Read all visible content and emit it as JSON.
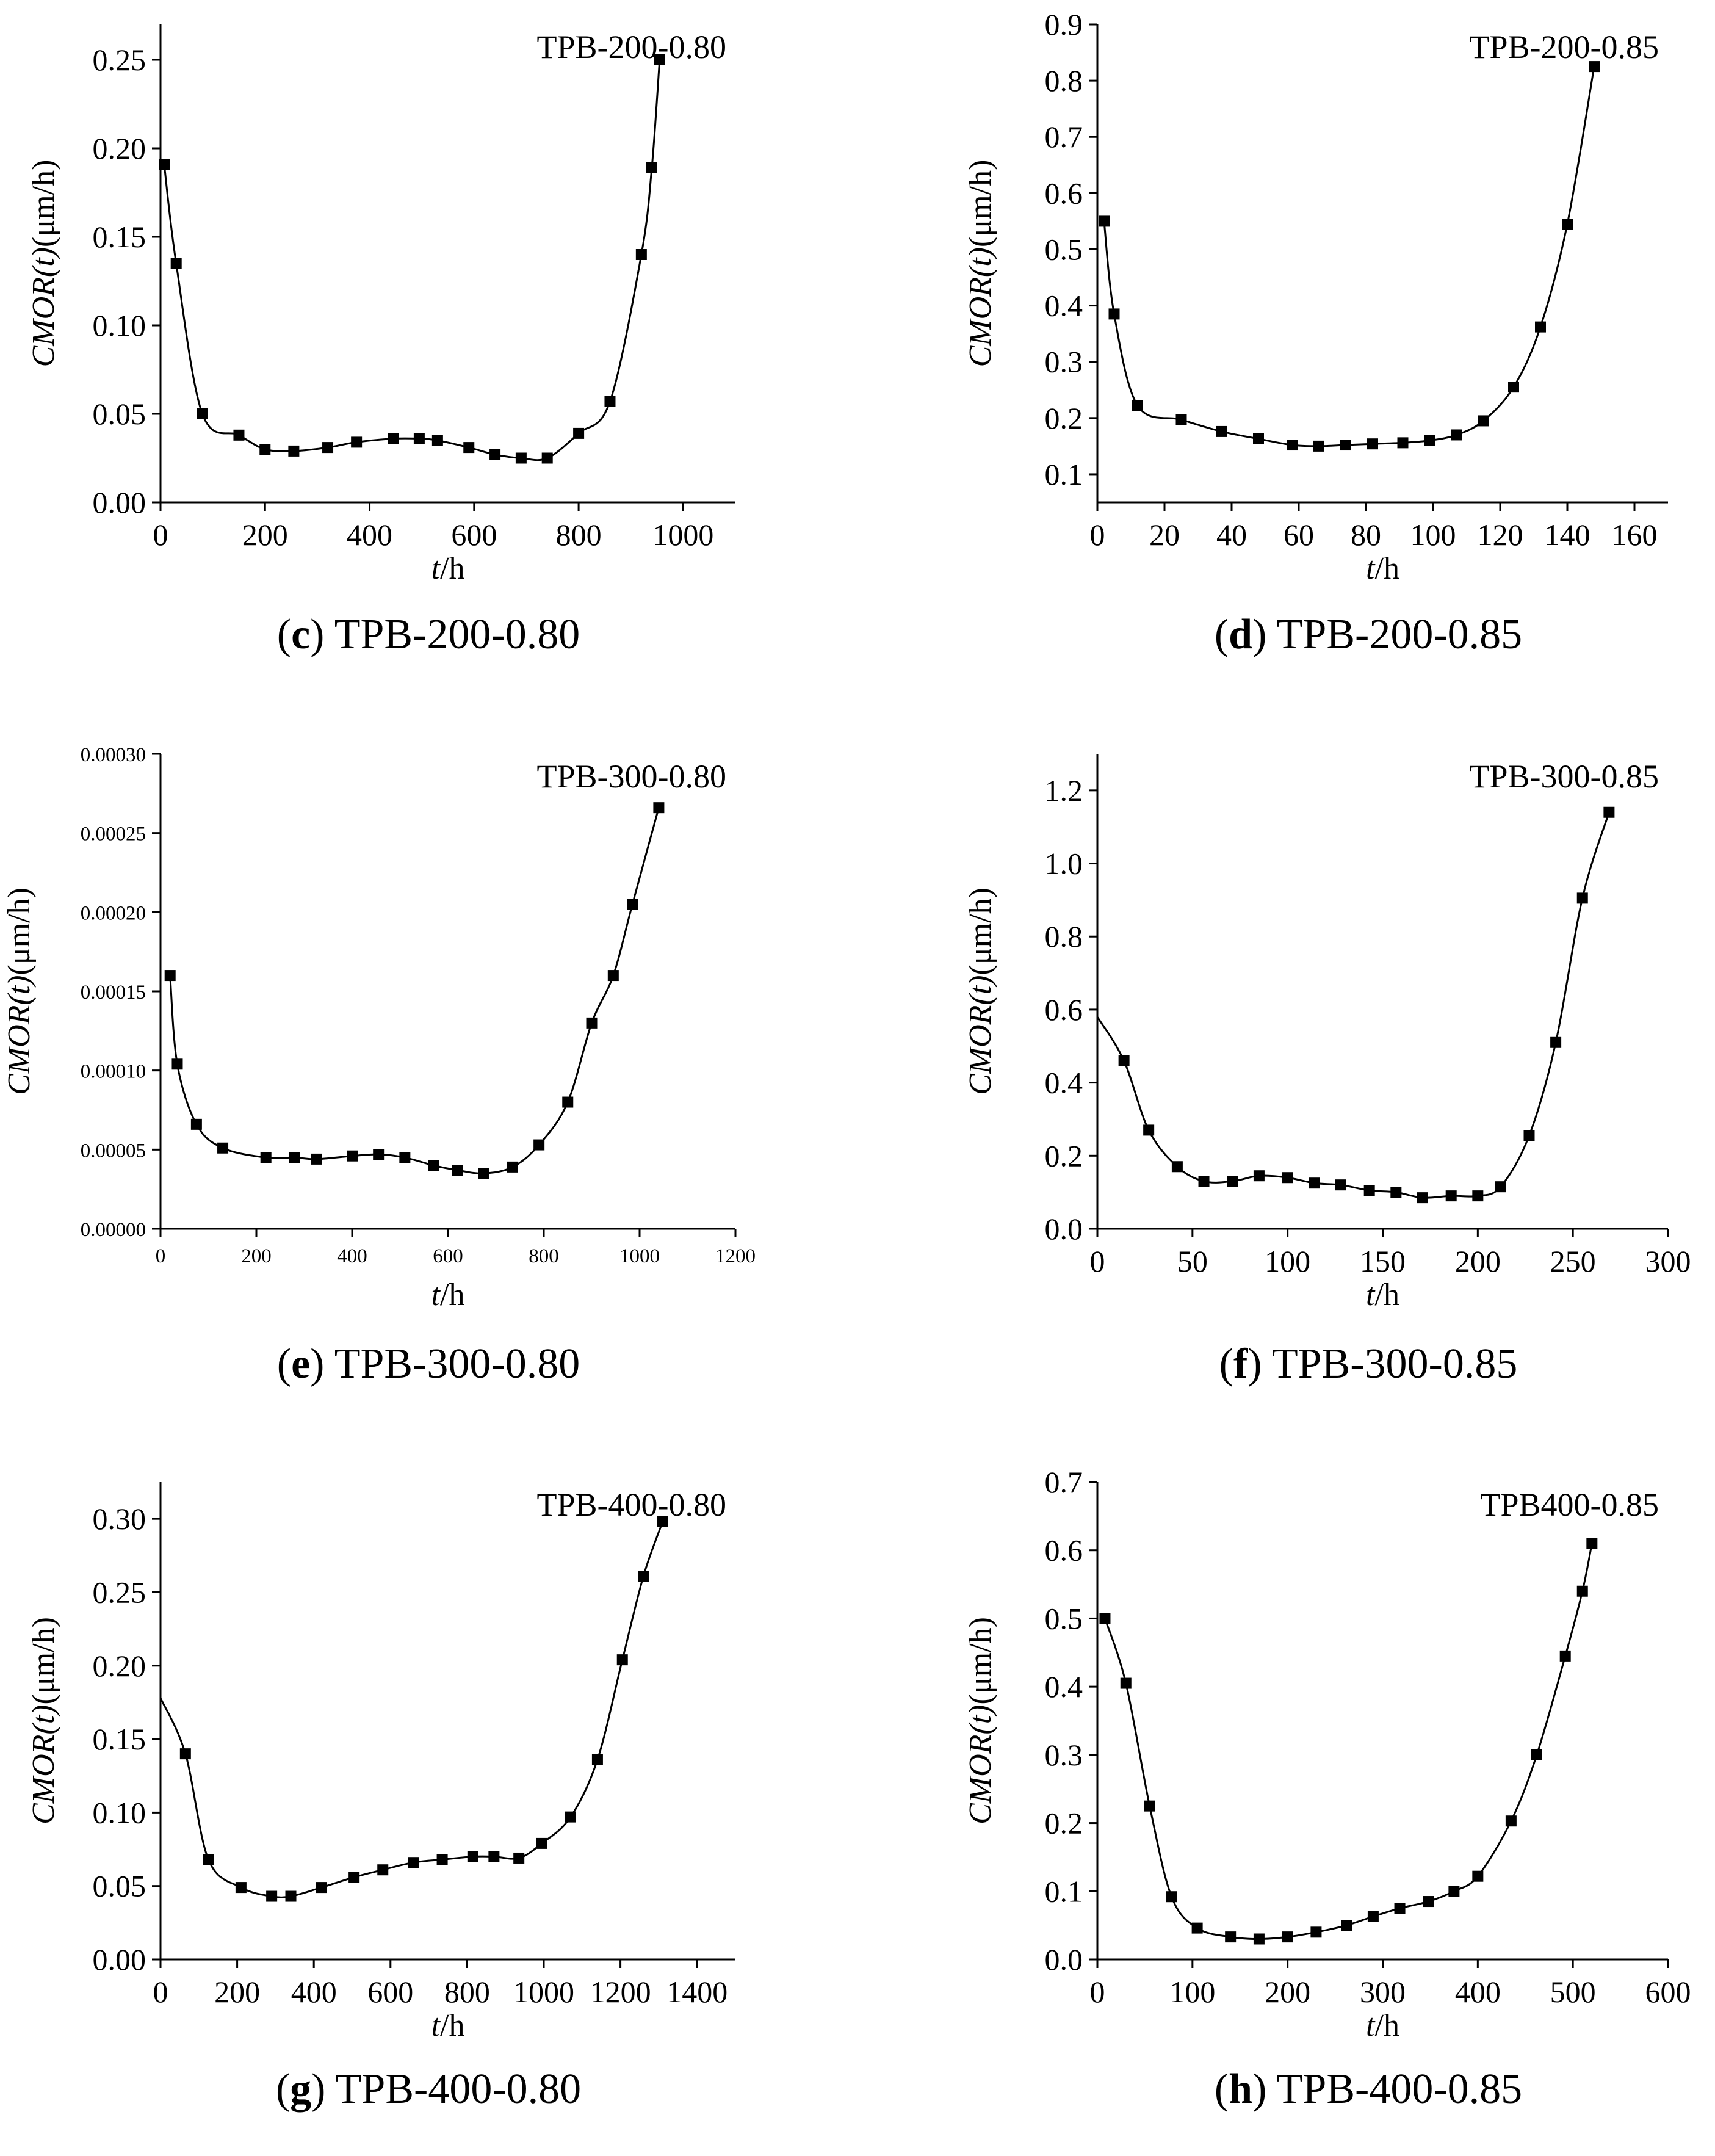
{
  "chart_data": [
    {
      "id": "c",
      "type": "line",
      "title": "TPB-200-0.80",
      "caption_letter": "c",
      "caption_text": "TPB-200-0.80",
      "xlabel_italic": "t",
      "xlabel_rest": "/h",
      "ylabel_italic": "CMOR(t)",
      "ylabel_rest": "(μm/h)",
      "xlim": [
        0,
        1100
      ],
      "ylim": [
        0,
        0.27
      ],
      "xticks": [
        0,
        200,
        400,
        600,
        800,
        1000
      ],
      "xtick_labels": [
        "0",
        "200",
        "400",
        "600",
        "800",
        "1000"
      ],
      "yticks": [
        0,
        0.05,
        0.1,
        0.15,
        0.2,
        0.25
      ],
      "ytick_labels": [
        "0.00",
        "0.05",
        "0.10",
        "0.15",
        "0.20",
        "0.25"
      ],
      "x": [
        7,
        30,
        80,
        150,
        200,
        255,
        320,
        375,
        445,
        495,
        530,
        590,
        640,
        690,
        740,
        800,
        860,
        920,
        940,
        955
      ],
      "y": [
        0.191,
        0.135,
        0.05,
        0.038,
        0.03,
        0.029,
        0.031,
        0.034,
        0.036,
        0.036,
        0.035,
        0.031,
        0.027,
        0.025,
        0.025,
        0.039,
        0.057,
        0.14,
        0.189,
        0.25
      ]
    },
    {
      "id": "d",
      "type": "line",
      "title": "TPB-200-0.85",
      "caption_letter": "d",
      "caption_text": "TPB-200-0.85",
      "xlabel_italic": "t",
      "xlabel_rest": "/h",
      "ylabel_italic": "CMOR(t)",
      "ylabel_rest": "(μm/h)",
      "xlim": [
        0,
        170
      ],
      "ylim": [
        0.05,
        0.9
      ],
      "xticks": [
        0,
        20,
        40,
        60,
        80,
        100,
        120,
        140,
        160
      ],
      "xtick_labels": [
        "0",
        "20",
        "40",
        "60",
        "80",
        "100",
        "120",
        "140",
        "160"
      ],
      "yticks": [
        0.1,
        0.2,
        0.3,
        0.4,
        0.5,
        0.6,
        0.7,
        0.8,
        0.9
      ],
      "ytick_labels": [
        "0.1",
        "0.2",
        "0.3",
        "0.4",
        "0.5",
        "0.6",
        "0.7",
        "0.8",
        "0.9"
      ],
      "x": [
        2,
        5,
        12,
        25,
        37,
        48,
        58,
        66,
        74,
        82,
        91,
        99,
        107,
        115,
        124,
        132,
        140,
        148
      ],
      "y": [
        0.55,
        0.385,
        0.222,
        0.197,
        0.176,
        0.163,
        0.152,
        0.15,
        0.152,
        0.154,
        0.156,
        0.16,
        0.17,
        0.195,
        0.255,
        0.362,
        0.545,
        0.825
      ]
    },
    {
      "id": "e",
      "type": "line",
      "title": "TPB-300-0.80",
      "caption_letter": "e",
      "caption_text": "TPB-300-0.80",
      "xlabel_italic": "t",
      "xlabel_rest": "/h",
      "ylabel_italic": "CMOR(t)",
      "ylabel_rest": "(μm/h)",
      "xlim": [
        0,
        1200
      ],
      "ylim": [
        0,
        0.0003
      ],
      "xticks": [
        0,
        200,
        400,
        600,
        800,
        1000,
        1200
      ],
      "xtick_labels": [
        "0",
        "200",
        "400",
        "600",
        "800",
        "1000",
        "1200"
      ],
      "yticks": [
        0,
        5e-05,
        0.0001,
        0.00015,
        0.0002,
        0.00025,
        0.0003
      ],
      "ytick_labels": [
        "0.00000",
        "0.00005",
        "0.00010",
        "0.00015",
        "0.00020",
        "0.00025",
        "0.00030"
      ],
      "small_ticks": true,
      "x": [
        20,
        35,
        75,
        130,
        220,
        280,
        325,
        400,
        455,
        510,
        570,
        620,
        675,
        735,
        790,
        850,
        900,
        945,
        985,
        1040
      ],
      "y": [
        0.00016,
        0.000104,
        6.6e-05,
        5.1e-05,
        4.5e-05,
        4.5e-05,
        4.4e-05,
        4.6e-05,
        4.7e-05,
        4.5e-05,
        4e-05,
        3.7e-05,
        3.5e-05,
        3.9e-05,
        5.3e-05,
        8e-05,
        0.00013,
        0.00016,
        0.000205,
        0.000266
      ]
    },
    {
      "id": "f",
      "type": "line",
      "title": "TPB-300-0.85",
      "caption_letter": "f",
      "caption_text": "TPB-300-0.85",
      "xlabel_italic": "t",
      "xlabel_rest": "/h",
      "ylabel_italic": "CMOR(t)",
      "ylabel_rest": "(μm/h)",
      "xlim": [
        0,
        300
      ],
      "ylim": [
        0,
        1.3
      ],
      "xticks": [
        0,
        50,
        100,
        150,
        200,
        250,
        300
      ],
      "xtick_labels": [
        "0",
        "50",
        "100",
        "150",
        "200",
        "250",
        "300"
      ],
      "yticks": [
        0,
        0.2,
        0.4,
        0.6,
        0.8,
        1.0,
        1.2
      ],
      "ytick_labels": [
        "0.0",
        "0.2",
        "0.4",
        "0.6",
        "0.8",
        "1.0",
        "1.2"
      ],
      "x": [
        0,
        14,
        27,
        42,
        56,
        71,
        85,
        100,
        114,
        128,
        143,
        157,
        171,
        186,
        200,
        212,
        227,
        241,
        255,
        269
      ],
      "y": [
        0.58,
        0.46,
        0.27,
        0.17,
        0.13,
        0.13,
        0.145,
        0.14,
        0.125,
        0.12,
        0.105,
        0.1,
        0.085,
        0.09,
        0.09,
        0.115,
        0.255,
        0.51,
        0.905,
        1.14
      ],
      "first_point_marker": false
    },
    {
      "id": "g",
      "type": "line",
      "title": "TPB-400-0.80",
      "caption_letter": "g",
      "caption_text": "TPB-400-0.80",
      "xlabel_italic": "t",
      "xlabel_rest": "/h",
      "ylabel_italic": "CMOR(t)",
      "ylabel_rest": "(μm/h)",
      "xlim": [
        0,
        1500
      ],
      "ylim": [
        0,
        0.325
      ],
      "xticks": [
        0,
        200,
        400,
        600,
        800,
        1000,
        1200,
        1400
      ],
      "xtick_labels": [
        "0",
        "200",
        "400",
        "600",
        "800",
        "1000",
        "1200",
        "1400"
      ],
      "yticks": [
        0,
        0.05,
        0.1,
        0.15,
        0.2,
        0.25,
        0.3
      ],
      "ytick_labels": [
        "0.00",
        "0.05",
        "0.10",
        "0.15",
        "0.20",
        "0.25",
        "0.30"
      ],
      "x": [
        0,
        65,
        125,
        210,
        290,
        340,
        420,
        505,
        580,
        660,
        735,
        815,
        870,
        935,
        995,
        1070,
        1140,
        1205,
        1260,
        1310
      ],
      "y": [
        0.178,
        0.14,
        0.068,
        0.049,
        0.043,
        0.043,
        0.049,
        0.056,
        0.061,
        0.066,
        0.068,
        0.07,
        0.07,
        0.069,
        0.079,
        0.097,
        0.136,
        0.204,
        0.261,
        0.298
      ],
      "first_point_marker": false
    },
    {
      "id": "h",
      "type": "line",
      "title": "TPB400-0.85",
      "caption_letter": "h",
      "caption_text": "TPB-400-0.85",
      "xlabel_italic": "t",
      "xlabel_rest": "/h",
      "ylabel_italic": "CMOR(t)",
      "ylabel_rest": "(μm/h)",
      "xlim": [
        0,
        600
      ],
      "ylim": [
        0,
        0.7
      ],
      "xticks": [
        0,
        100,
        200,
        300,
        400,
        500,
        600
      ],
      "xtick_labels": [
        "0",
        "100",
        "200",
        "300",
        "400",
        "500",
        "600"
      ],
      "yticks": [
        0,
        0.1,
        0.2,
        0.3,
        0.4,
        0.5,
        0.6,
        0.7
      ],
      "ytick_labels": [
        "0.0",
        "0.1",
        "0.2",
        "0.3",
        "0.4",
        "0.5",
        "0.6",
        "0.7"
      ],
      "x": [
        8,
        30,
        55,
        78,
        105,
        140,
        170,
        200,
        230,
        262,
        290,
        318,
        348,
        375,
        400,
        435,
        462,
        492,
        510,
        520
      ],
      "y": [
        0.5,
        0.405,
        0.225,
        0.092,
        0.046,
        0.033,
        0.03,
        0.033,
        0.04,
        0.05,
        0.063,
        0.075,
        0.085,
        0.1,
        0.122,
        0.203,
        0.3,
        0.445,
        0.54,
        0.61
      ]
    }
  ]
}
